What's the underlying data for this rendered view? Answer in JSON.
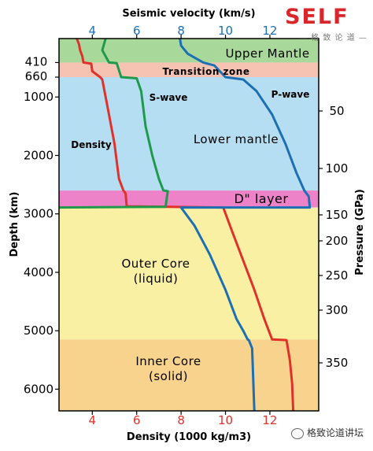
{
  "logo": {
    "word": "SELF",
    "subtitle": "— 格 致 论 道 —"
  },
  "watermark": "格致论道讲坛",
  "chart_data": {
    "type": "line",
    "top_axis": {
      "label": "Seismic velocity (km/s)",
      "ticks": [
        4,
        6,
        8,
        10,
        12
      ],
      "range": [
        2.5,
        14.2
      ]
    },
    "bottom_axis": {
      "label": "Density (1000 kg/m3)",
      "ticks": [
        4,
        6,
        8,
        10,
        12
      ],
      "range": [
        2.5,
        14.2
      ]
    },
    "left_axis": {
      "label": "Depth (km)",
      "ticks": [
        1000,
        2000,
        3000,
        4000,
        5000,
        6000
      ],
      "extra_ticks": [
        "410",
        "660"
      ],
      "range": [
        0,
        6371
      ]
    },
    "right_axis": {
      "label": "Pressure (GPa)",
      "ticks": [
        "50",
        "100",
        "150",
        "200",
        "250",
        "300",
        "350"
      ]
    },
    "zones": [
      {
        "label": "Upper Mantle",
        "from": 0,
        "to": 410,
        "color": "#a9d99a"
      },
      {
        "label": "Transition zone",
        "from": 410,
        "to": 660,
        "color": "#f6c3b3"
      },
      {
        "label": "Lower mantle",
        "from": 660,
        "to": 2600,
        "color": "#b6def2"
      },
      {
        "label": "D\" layer",
        "from": 2600,
        "to": 2890,
        "color": "#ee82c8"
      },
      {
        "label": "Outer Core\n(liquid)",
        "from": 2890,
        "to": 5150,
        "color": "#f9f0a3"
      },
      {
        "label": "Inner Core\n(solid)",
        "from": 5150,
        "to": 6371,
        "color": "#f8d38d"
      }
    ],
    "series": [
      {
        "name": "Density",
        "color": "#e0312a",
        "points": [
          [
            3.3,
            0
          ],
          [
            3.4,
            100
          ],
          [
            3.45,
            200
          ],
          [
            3.55,
            300
          ],
          [
            3.6,
            410
          ],
          [
            3.95,
            430
          ],
          [
            4.0,
            560
          ],
          [
            4.35,
            660
          ],
          [
            4.45,
            700
          ],
          [
            4.55,
            900
          ],
          [
            4.7,
            1200
          ],
          [
            4.85,
            1500
          ],
          [
            5.0,
            1800
          ],
          [
            5.1,
            2100
          ],
          [
            5.2,
            2400
          ],
          [
            5.4,
            2600
          ],
          [
            5.5,
            2650
          ],
          [
            5.55,
            2870
          ],
          [
            9.9,
            2890
          ],
          [
            10.3,
            3300
          ],
          [
            10.8,
            3800
          ],
          [
            11.3,
            4300
          ],
          [
            11.75,
            4800
          ],
          [
            12.1,
            5150
          ],
          [
            12.75,
            5160
          ],
          [
            12.9,
            5500
          ],
          [
            13.0,
            5900
          ],
          [
            13.05,
            6371
          ]
        ]
      },
      {
        "name": "S-wave",
        "color": "#1e9a4c",
        "points": [
          [
            4.6,
            0
          ],
          [
            4.45,
            200
          ],
          [
            4.75,
            410
          ],
          [
            5.1,
            420
          ],
          [
            5.3,
            660
          ],
          [
            6.0,
            680
          ],
          [
            6.2,
            900
          ],
          [
            6.4,
            1500
          ],
          [
            6.7,
            2000
          ],
          [
            7.0,
            2400
          ],
          [
            7.2,
            2600
          ],
          [
            7.4,
            2610
          ],
          [
            7.3,
            2880
          ],
          [
            0,
            2890
          ]
        ]
      },
      {
        "name": "P-wave",
        "color": "#1d6fb3",
        "points": [
          [
            7.95,
            0
          ],
          [
            8.0,
            120
          ],
          [
            8.3,
            260
          ],
          [
            9.0,
            410
          ],
          [
            9.5,
            460
          ],
          [
            10.0,
            660
          ],
          [
            10.8,
            700
          ],
          [
            11.4,
            900
          ],
          [
            12.1,
            1300
          ],
          [
            12.7,
            1800
          ],
          [
            13.2,
            2300
          ],
          [
            13.55,
            2600
          ],
          [
            13.75,
            2700
          ],
          [
            13.8,
            2890
          ],
          [
            8.0,
            2890
          ],
          [
            8.6,
            3200
          ],
          [
            9.3,
            3700
          ],
          [
            10.0,
            4300
          ],
          [
            10.5,
            4800
          ],
          [
            10.8,
            5000
          ],
          [
            11.0,
            5150
          ],
          [
            11.05,
            5160
          ],
          [
            11.2,
            5300
          ],
          [
            11.3,
            6371
          ]
        ]
      }
    ],
    "series_labels": {
      "density": "Density",
      "s_wave": "S-wave",
      "p_wave": "P-wave"
    }
  }
}
